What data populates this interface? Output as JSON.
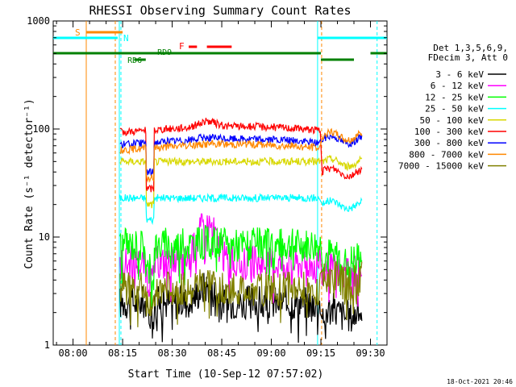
{
  "chart_data": {
    "type": "line",
    "title": "RHESSI Observing Summary Count Rates",
    "xlabel": "Start Time (10-Sep-12 07:57:02)",
    "ylabel": "Count Rate (s⁻¹ detector⁻¹)",
    "yscale": "log",
    "ylim": [
      1,
      1000
    ],
    "xlim_minutes_after_start": [
      -3,
      98
    ],
    "x_ticks": [
      "08:00",
      "08:15",
      "08:30",
      "08:45",
      "09:00",
      "09:15",
      "09:30"
    ],
    "y_ticks": [
      "1",
      "10",
      "100",
      "1000"
    ],
    "legend_header": [
      "Det 1,3,5,6,9,",
      "FDecim 3, Att 0"
    ],
    "legend_position": "right",
    "series": [
      {
        "name": "3 - 6 keV",
        "color": "#000000",
        "level_before": 2.5,
        "level_dip": 2.0,
        "level_after": 2.0,
        "peak": 3.5
      },
      {
        "name": "6 - 12 keV",
        "color": "#ff00ff",
        "level_before": 5.8,
        "level_dip": 4.0,
        "level_after": 4.8,
        "peak": 13.5
      },
      {
        "name": "12 - 25 keV",
        "color": "#00ff00",
        "level_before": 8.5,
        "level_dip": 5.0,
        "level_after": 6.5,
        "peak": 9.0
      },
      {
        "name": "25 - 50 keV",
        "color": "#00ffff",
        "level_before": 23,
        "level_dip": 14.5,
        "level_after": 20,
        "peak": 23
      },
      {
        "name": "50 - 100 keV",
        "color": "#d8d800",
        "level_before": 50,
        "level_dip": 20,
        "level_after": 49,
        "peak": 50
      },
      {
        "name": "100 - 300 keV",
        "color": "#ff0000",
        "level_before": 98,
        "level_dip": 28,
        "level_after": 40,
        "peak": 110
      },
      {
        "name": "300 - 800 keV",
        "color": "#0000ff",
        "level_before": 75,
        "level_dip": 40,
        "level_after": 80,
        "peak": 78
      },
      {
        "name": "800 - 7000 keV",
        "color": "#ff8800",
        "level_before": 67,
        "level_dip": 35,
        "level_after": 86,
        "peak": 68
      },
      {
        "name": "7000 - 15000 keV",
        "color": "#808000",
        "level_before": 3.3,
        "level_dip": 2.5,
        "level_after": 4.0,
        "peak": 3.8
      }
    ],
    "events": {
      "saa_start_minute": 7,
      "night_end_minute": 17,
      "night_start_minute": 77,
      "saa_end_minute": 95
    },
    "state_bar_labels": {
      "saa": "S",
      "night": "N",
      "flare": "F",
      "rd9": "RD9",
      "rd6": "RD6"
    },
    "timestamp": "18-Oct-2021 20:46"
  }
}
